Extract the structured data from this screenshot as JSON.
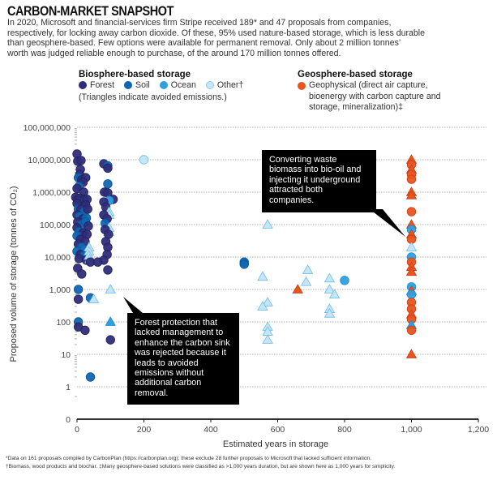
{
  "header": {
    "title": "CARBON-MARKET SNAPSHOT",
    "intro_lines": [
      "In 2020, Microsoft and financial-services firm Stripe received 189* and 47 proposals from companies,",
      "respectively, for locking away carbon dioxide. Of these, 95% used nature-based storage, which is less durable",
      "than geosphere-based. Few options were available for permanent removal. Only about 2 million tonnes’",
      "worth was judged reliable enough to purchase, of the around 170 million tonnes offered."
    ]
  },
  "legend": {
    "biosphere": {
      "heading": "Biosphere-based storage",
      "items": [
        {
          "label": "Forest",
          "color": "#2e2d7a"
        },
        {
          "label": "Soil",
          "color": "#0f66b3"
        },
        {
          "label": "Ocean",
          "color": "#2e9fe0"
        },
        {
          "label": "Other†",
          "color": "#c5e5f8"
        }
      ],
      "note": "(Triangles indicate avoided emissions.)"
    },
    "geosphere": {
      "heading": "Geosphere-based storage",
      "items": [
        {
          "label": "Geophysical (direct air capture, bioenergy with carbon capture and storage, mineralization)‡",
          "color": "#e8541e"
        }
      ]
    }
  },
  "callouts": {
    "bio_oil": "Converting waste biomass into bio-oil and injecting it underground attracted both companies.",
    "forest": "Forest protection that lacked management to enhance the carbon sink was rejected because it leads to avoided emissions without additional carbon removal."
  },
  "footnotes": [
    "*Data on 161 proposals compiled by CarbonPlan (https://carbonplan.org); these exclude 28 further proposals to Microsoft that lacked sufficient information.",
    "†Biomass, wood products and biochar. ‡Many geosphere-based solutions were classified as >1,000 years duration, but are shown here as 1,000 years for simplicity."
  ],
  "chart_data": {
    "type": "scatter",
    "title": "",
    "xlabel": "Estimated years in storage",
    "ylabel": "Proposed volume of storage (tonnes of CO₂)",
    "xlim": [
      0,
      1200
    ],
    "xticks": [
      0,
      200,
      400,
      600,
      800,
      1000,
      1200
    ],
    "xtick_labels": [
      "0",
      "200",
      "400",
      "600",
      "800",
      "1,000",
      "1,200"
    ],
    "yscale": "log",
    "ylim": [
      0,
      100000000
    ],
    "yticks": [
      0,
      1,
      10,
      100,
      1000,
      10000,
      100000,
      1000000,
      10000000,
      100000000
    ],
    "ytick_labels": [
      "0",
      "1",
      "10",
      "100",
      "1,000",
      "10,000",
      "100,000",
      "1,000,000",
      "10,000,000",
      "100,000,000"
    ],
    "grid": "horizontal-dotted",
    "series_colors": {
      "Forest": "#2e2d7a",
      "Soil": "#0f66b3",
      "Ocean": "#2e9fe0",
      "Other": "#c5e5f8",
      "Geophysical": "#e8541e"
    },
    "points": [
      {
        "x": 0,
        "y": 15000000,
        "cat": "Forest",
        "shape": "circle"
      },
      {
        "x": 2,
        "y": 9000000,
        "cat": "Forest",
        "shape": "circle"
      },
      {
        "x": 12,
        "y": 9500000,
        "cat": "Forest",
        "shape": "circle"
      },
      {
        "x": 10,
        "y": 5000000,
        "cat": "Forest",
        "shape": "circle"
      },
      {
        "x": 8,
        "y": 3500000,
        "cat": "Forest",
        "shape": "circle"
      },
      {
        "x": 4,
        "y": 2800000,
        "cat": "Soil",
        "shape": "circle"
      },
      {
        "x": 14,
        "y": 2400000,
        "cat": "Forest",
        "shape": "circle"
      },
      {
        "x": 26,
        "y": 2800000,
        "cat": "Forest",
        "shape": "circle"
      },
      {
        "x": 18,
        "y": 2000000,
        "cat": "Forest",
        "shape": "circle"
      },
      {
        "x": 6,
        "y": 1500000,
        "cat": "Soil",
        "shape": "circle"
      },
      {
        "x": 0,
        "y": 1300000,
        "cat": "Forest",
        "shape": "circle"
      },
      {
        "x": 20,
        "y": 1000000,
        "cat": "Forest",
        "shape": "circle"
      },
      {
        "x": -4,
        "y": 700000,
        "cat": "Forest",
        "shape": "circle"
      },
      {
        "x": 2,
        "y": 600000,
        "cat": "Forest",
        "shape": "circle"
      },
      {
        "x": 8,
        "y": 650000,
        "cat": "Forest",
        "shape": "circle"
      },
      {
        "x": 14,
        "y": 500000,
        "cat": "Soil",
        "shape": "circle"
      },
      {
        "x": 22,
        "y": 600000,
        "cat": "Forest",
        "shape": "circle"
      },
      {
        "x": 30,
        "y": 600000,
        "cat": "Forest",
        "shape": "circle"
      },
      {
        "x": 26,
        "y": 400000,
        "cat": "Forest",
        "shape": "circle"
      },
      {
        "x": 0,
        "y": 450000,
        "cat": "Forest",
        "shape": "circle"
      },
      {
        "x": 4,
        "y": 300000,
        "cat": "Soil",
        "shape": "circle"
      },
      {
        "x": 12,
        "y": 300000,
        "cat": "Forest",
        "shape": "circle"
      },
      {
        "x": 22,
        "y": 250000,
        "cat": "Soil",
        "shape": "circle"
      },
      {
        "x": 32,
        "y": 300000,
        "cat": "Forest",
        "shape": "circle"
      },
      {
        "x": 0,
        "y": 200000,
        "cat": "Forest",
        "shape": "circle"
      },
      {
        "x": 8,
        "y": 180000,
        "cat": "Soil",
        "shape": "circle"
      },
      {
        "x": 18,
        "y": 150000,
        "cat": "Forest",
        "shape": "circle"
      },
      {
        "x": 28,
        "y": 160000,
        "cat": "Soil",
        "shape": "circle"
      },
      {
        "x": 2,
        "y": 120000,
        "cat": "Forest",
        "shape": "circle"
      },
      {
        "x": 14,
        "y": 100000,
        "cat": "Soil",
        "shape": "circle"
      },
      {
        "x": 26,
        "y": 120000,
        "cat": "Soil",
        "shape": "circle"
      },
      {
        "x": 34,
        "y": 90000,
        "cat": "Forest",
        "shape": "circle"
      },
      {
        "x": 0,
        "y": 80000,
        "cat": "Forest",
        "shape": "circle"
      },
      {
        "x": 6,
        "y": 60000,
        "cat": "Soil",
        "shape": "circle"
      },
      {
        "x": 18,
        "y": 55000,
        "cat": "Forest",
        "shape": "circle"
      },
      {
        "x": 30,
        "y": 50000,
        "cat": "Forest",
        "shape": "circle"
      },
      {
        "x": 0,
        "y": 45000,
        "cat": "Soil",
        "shape": "circle"
      },
      {
        "x": 10,
        "y": 35000,
        "cat": "Forest",
        "shape": "circle"
      },
      {
        "x": 24,
        "y": 30000,
        "cat": "Forest",
        "shape": "circle"
      },
      {
        "x": 4,
        "y": 25000,
        "cat": "Forest",
        "shape": "circle"
      },
      {
        "x": 14,
        "y": 20000,
        "cat": "Soil",
        "shape": "circle"
      },
      {
        "x": 0,
        "y": 15000,
        "cat": "Soil",
        "shape": "circle"
      },
      {
        "x": 10,
        "y": 12000,
        "cat": "Forest",
        "shape": "circle"
      },
      {
        "x": 20,
        "y": 11000,
        "cat": "Soil",
        "shape": "circle"
      },
      {
        "x": 6,
        "y": 9000,
        "cat": "Forest",
        "shape": "circle"
      },
      {
        "x": 28,
        "y": 8000,
        "cat": "Forest",
        "shape": "circle"
      },
      {
        "x": 2,
        "y": 4500,
        "cat": "Forest",
        "shape": "circle"
      },
      {
        "x": 14,
        "y": 3000,
        "cat": "Forest",
        "shape": "circle"
      },
      {
        "x": 36,
        "y": 20000,
        "cat": "Other",
        "shape": "triangle"
      },
      {
        "x": 36,
        "y": 15000,
        "cat": "Other",
        "shape": "triangle"
      },
      {
        "x": 36,
        "y": 11000,
        "cat": "Other",
        "shape": "triangle"
      },
      {
        "x": 38,
        "y": 8500,
        "cat": "Other",
        "shape": "triangle"
      },
      {
        "x": 40,
        "y": 7000,
        "cat": "Forest",
        "shape": "circle"
      },
      {
        "x": 80,
        "y": 7500000,
        "cat": "Forest",
        "shape": "circle"
      },
      {
        "x": 92,
        "y": 6500000,
        "cat": "Soil",
        "shape": "circle"
      },
      {
        "x": 92,
        "y": 5500000,
        "cat": "Forest",
        "shape": "circle"
      },
      {
        "x": 92,
        "y": 1800000,
        "cat": "Soil",
        "shape": "circle"
      },
      {
        "x": 82,
        "y": 1000000,
        "cat": "Forest",
        "shape": "circle"
      },
      {
        "x": 92,
        "y": 950000,
        "cat": "Forest",
        "shape": "circle"
      },
      {
        "x": 108,
        "y": 600000,
        "cat": "Forest",
        "shape": "circle"
      },
      {
        "x": 96,
        "y": 550000,
        "cat": "Ocean",
        "shape": "circle"
      },
      {
        "x": 80,
        "y": 500000,
        "cat": "Forest",
        "shape": "circle"
      },
      {
        "x": 86,
        "y": 350000,
        "cat": "Forest",
        "shape": "circle"
      },
      {
        "x": 96,
        "y": 250000,
        "cat": "Other",
        "shape": "triangle"
      },
      {
        "x": 96,
        "y": 200000,
        "cat": "Other",
        "shape": "triangle"
      },
      {
        "x": 80,
        "y": 200000,
        "cat": "Forest",
        "shape": "circle"
      },
      {
        "x": 90,
        "y": 150000,
        "cat": "Forest",
        "shape": "circle"
      },
      {
        "x": 84,
        "y": 110000,
        "cat": "Soil",
        "shape": "circle"
      },
      {
        "x": 96,
        "y": 80000,
        "cat": "Other",
        "shape": "triangle"
      },
      {
        "x": 96,
        "y": 60000,
        "cat": "Other",
        "shape": "triangle"
      },
      {
        "x": 84,
        "y": 70000,
        "cat": "Forest",
        "shape": "circle"
      },
      {
        "x": 94,
        "y": 50000,
        "cat": "Forest",
        "shape": "circle"
      },
      {
        "x": 86,
        "y": 30000,
        "cat": "Forest",
        "shape": "circle"
      },
      {
        "x": 92,
        "y": 20000,
        "cat": "Forest",
        "shape": "circle"
      },
      {
        "x": 90,
        "y": 12000,
        "cat": "Forest",
        "shape": "circle"
      },
      {
        "x": 80,
        "y": 8000,
        "cat": "Forest",
        "shape": "circle"
      },
      {
        "x": 62,
        "y": 7000,
        "cat": "Forest",
        "shape": "circle"
      },
      {
        "x": 92,
        "y": 4000,
        "cat": "Forest",
        "shape": "circle"
      },
      {
        "x": 200,
        "y": 10000000,
        "cat": "Other",
        "shape": "circle"
      },
      {
        "x": 4,
        "y": 1000,
        "cat": "Soil",
        "shape": "circle"
      },
      {
        "x": 4,
        "y": 500,
        "cat": "Forest",
        "shape": "circle"
      },
      {
        "x": 40,
        "y": 550,
        "cat": "Soil",
        "shape": "circle"
      },
      {
        "x": 50,
        "y": 500,
        "cat": "Other",
        "shape": "triangle"
      },
      {
        "x": 100,
        "y": 1000,
        "cat": "Other",
        "shape": "triangle"
      },
      {
        "x": 4,
        "y": 100,
        "cat": "Soil",
        "shape": "circle"
      },
      {
        "x": 4,
        "y": 70,
        "cat": "Forest",
        "shape": "circle"
      },
      {
        "x": 24,
        "y": 55,
        "cat": "Forest",
        "shape": "circle"
      },
      {
        "x": 100,
        "y": 100,
        "cat": "Ocean",
        "shape": "triangle"
      },
      {
        "x": 100,
        "y": 28,
        "cat": "Forest",
        "shape": "circle"
      },
      {
        "x": 40,
        "y": 2,
        "cat": "Soil",
        "shape": "circle"
      },
      {
        "x": 500,
        "y": 7000,
        "cat": "Soil",
        "shape": "circle"
      },
      {
        "x": 500,
        "y": 6000,
        "cat": "Soil",
        "shape": "circle"
      },
      {
        "x": 570,
        "y": 100000,
        "cat": "Other",
        "shape": "triangle"
      },
      {
        "x": 555,
        "y": 2500,
        "cat": "Other",
        "shape": "triangle"
      },
      {
        "x": 570,
        "y": 400,
        "cat": "Other",
        "shape": "triangle"
      },
      {
        "x": 555,
        "y": 300,
        "cat": "Other",
        "shape": "triangle"
      },
      {
        "x": 570,
        "y": 70,
        "cat": "Other",
        "shape": "triangle"
      },
      {
        "x": 570,
        "y": 50,
        "cat": "Other",
        "shape": "triangle"
      },
      {
        "x": 570,
        "y": 28,
        "cat": "Other",
        "shape": "triangle"
      },
      {
        "x": 660,
        "y": 1000,
        "cat": "Geophysical",
        "shape": "triangle"
      },
      {
        "x": 690,
        "y": 4000,
        "cat": "Other",
        "shape": "triangle"
      },
      {
        "x": 685,
        "y": 1700,
        "cat": "Other",
        "shape": "triangle"
      },
      {
        "x": 755,
        "y": 2200,
        "cat": "Other",
        "shape": "triangle"
      },
      {
        "x": 755,
        "y": 1000,
        "cat": "Other",
        "shape": "triangle"
      },
      {
        "x": 770,
        "y": 700,
        "cat": "Other",
        "shape": "triangle"
      },
      {
        "x": 755,
        "y": 250,
        "cat": "Other",
        "shape": "triangle"
      },
      {
        "x": 755,
        "y": 180,
        "cat": "Other",
        "shape": "triangle"
      },
      {
        "x": 800,
        "y": 1900,
        "cat": "Ocean",
        "shape": "circle"
      },
      {
        "x": 1000,
        "y": 10000000,
        "cat": "Geophysical",
        "shape": "triangle"
      },
      {
        "x": 1000,
        "y": 7000000,
        "cat": "Geophysical",
        "shape": "circle"
      },
      {
        "x": 1000,
        "y": 5000000,
        "cat": "Geophysical",
        "shape": "triangle"
      },
      {
        "x": 1000,
        "y": 3500000,
        "cat": "Geophysical",
        "shape": "circle"
      },
      {
        "x": 1000,
        "y": 2500000,
        "cat": "Geophysical",
        "shape": "circle"
      },
      {
        "x": 1000,
        "y": 1000000,
        "cat": "Geophysical",
        "shape": "triangle"
      },
      {
        "x": 1000,
        "y": 800000,
        "cat": "Geophysical",
        "shape": "triangle"
      },
      {
        "x": 1000,
        "y": 250000,
        "cat": "Geophysical",
        "shape": "circle"
      },
      {
        "x": 1000,
        "y": 100000,
        "cat": "Geophysical",
        "shape": "triangle"
      },
      {
        "x": 1000,
        "y": 70000,
        "cat": "Ocean",
        "shape": "circle"
      },
      {
        "x": 1000,
        "y": 50000,
        "cat": "Geophysical",
        "shape": "triangle"
      },
      {
        "x": 1000,
        "y": 35000,
        "cat": "Geophysical",
        "shape": "circle"
      },
      {
        "x": 1000,
        "y": 20000,
        "cat": "Other",
        "shape": "triangle"
      },
      {
        "x": 1000,
        "y": 10000,
        "cat": "Ocean",
        "shape": "circle"
      },
      {
        "x": 1000,
        "y": 7000,
        "cat": "Geophysical",
        "shape": "circle"
      },
      {
        "x": 1000,
        "y": 5000,
        "cat": "Geophysical",
        "shape": "triangle"
      },
      {
        "x": 1000,
        "y": 3500,
        "cat": "Geophysical",
        "shape": "triangle"
      },
      {
        "x": 1000,
        "y": 1200,
        "cat": "Ocean",
        "shape": "circle"
      },
      {
        "x": 1000,
        "y": 900,
        "cat": "Geophysical",
        "shape": "triangle"
      },
      {
        "x": 1000,
        "y": 700,
        "cat": "Ocean",
        "shape": "circle"
      },
      {
        "x": 1000,
        "y": 400,
        "cat": "Geophysical",
        "shape": "circle"
      },
      {
        "x": 1000,
        "y": 250,
        "cat": "Geophysical",
        "shape": "circle"
      },
      {
        "x": 1000,
        "y": 170,
        "cat": "Geophysical",
        "shape": "triangle"
      },
      {
        "x": 1000,
        "y": 120,
        "cat": "Geophysical",
        "shape": "circle"
      },
      {
        "x": 1000,
        "y": 80,
        "cat": "Ocean",
        "shape": "triangle"
      },
      {
        "x": 1000,
        "y": 55,
        "cat": "Geophysical",
        "shape": "circle"
      },
      {
        "x": 1000,
        "y": 10,
        "cat": "Geophysical",
        "shape": "triangle"
      }
    ]
  }
}
